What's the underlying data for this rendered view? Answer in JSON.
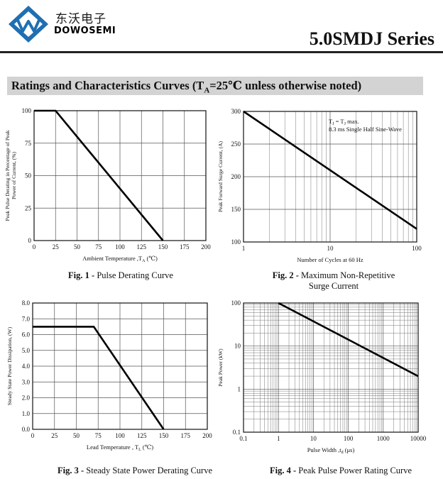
{
  "header": {
    "brand_cn": "东沃电子",
    "brand_en": "DOWOSEMI",
    "series_title": "5.0SMDJ Series",
    "accent_color": "#1f6fb2"
  },
  "section": {
    "title_prefix": "Ratings and Characteristics Curves (T",
    "title_sub": "A",
    "title_suffix": "=25℃ unless otherwise noted)",
    "background": "#d3d3d3"
  },
  "chart_data": [
    {
      "id": "fig1",
      "type": "line",
      "caption_fig": "Fig. 1 -",
      "caption_text": " Pulse Derating Curve",
      "xlabel_main": "Ambient Temperature ,T",
      "xlabel_sub": "A",
      "xlabel_tail": " (℃)",
      "ylabel_lines": [
        "Peak Pulse Derating in Percentage of  Peak",
        "Power of Current, (%)"
      ],
      "xscale": "linear",
      "yscale": "linear",
      "xlim": [
        0,
        200
      ],
      "ylim": [
        0,
        100
      ],
      "x_ticks": [
        0,
        25,
        50,
        75,
        100,
        125,
        150,
        175,
        200
      ],
      "x_tick_labels": [
        "0",
        "25",
        "50",
        "75",
        "100",
        "125",
        "150",
        "175",
        "200"
      ],
      "y_ticks": [
        0,
        25,
        50,
        75,
        100
      ],
      "y_tick_labels": [
        "0",
        "25",
        "50",
        "75",
        "100"
      ],
      "grid": "major",
      "series": [
        {
          "x": [
            0,
            25,
            150
          ],
          "y": [
            100,
            100,
            0
          ]
        }
      ]
    },
    {
      "id": "fig2",
      "type": "line",
      "caption_fig": "Fig. 2 -",
      "caption_text": " Maximum Non-Repetitive",
      "caption_line2": "Surge Current",
      "xlabel_main": "Number of Cycles at 60 Hz",
      "ylabel_lines": [
        "Peak Forward Surge Current, (A)"
      ],
      "xscale": "log",
      "yscale": "linear",
      "xlim": [
        1,
        100
      ],
      "ylim": [
        100,
        300
      ],
      "x_ticks": [
        1,
        10,
        100
      ],
      "x_tick_labels": [
        "1",
        "10",
        "100"
      ],
      "y_ticks": [
        100,
        150,
        200,
        250,
        300
      ],
      "y_tick_labels": [
        "100",
        "150",
        "200",
        "250",
        "300"
      ],
      "grid": "log-minor-x",
      "annotation": {
        "line1_prefix": "T",
        "line1_sub1": "J",
        "line1_mid": " = T",
        "line1_sub2": "J",
        "line1_suffix": " max.",
        "line2": "8.3 ms Single Half Sine-Wave"
      },
      "series": [
        {
          "x": [
            1,
            100
          ],
          "y": [
            300,
            120
          ]
        }
      ]
    },
    {
      "id": "fig3",
      "type": "line",
      "caption_fig": "Fig. 3 -",
      "caption_text": " Steady State Power Derating Curve",
      "xlabel_main": "Lead Temperature , T",
      "xlabel_sub": "L",
      "xlabel_tail": " (℃)",
      "ylabel_lines": [
        "Steady State Power Dissipation, (W)"
      ],
      "xscale": "linear",
      "yscale": "linear",
      "xlim": [
        0,
        200
      ],
      "ylim": [
        0,
        8
      ],
      "x_ticks": [
        0,
        25,
        50,
        75,
        100,
        125,
        150,
        175,
        200
      ],
      "x_tick_labels": [
        "0",
        "25",
        "50",
        "75",
        "100",
        "125",
        "150",
        "175",
        "200"
      ],
      "y_ticks": [
        0,
        1,
        2,
        3,
        4,
        5,
        6,
        7,
        8
      ],
      "y_tick_labels": [
        "0.0",
        "1.0",
        "2.0",
        "3.0",
        "4.0",
        "5.0",
        "6.0",
        "7.0",
        "8.0"
      ],
      "grid": "major",
      "series": [
        {
          "x": [
            0,
            70,
            150
          ],
          "y": [
            6.5,
            6.5,
            0
          ]
        }
      ]
    },
    {
      "id": "fig4",
      "type": "line",
      "caption_fig": "Fig. 4 -",
      "caption_text": " Peak Pulse Power Rating Curve",
      "xlabel_main": "Pulse Width ,t",
      "xlabel_sub": "d",
      "xlabel_tail": " (μs)",
      "ylabel_lines": [
        "Peak Power (kW)"
      ],
      "xscale": "log",
      "yscale": "log",
      "xlim": [
        0.1,
        10000
      ],
      "ylim": [
        0.1,
        100
      ],
      "x_ticks": [
        0.1,
        1,
        10,
        100,
        1000,
        10000
      ],
      "x_tick_labels": [
        "0.1",
        "1",
        "10",
        "100",
        "1000",
        "10000"
      ],
      "y_ticks": [
        0.1,
        1,
        10,
        100
      ],
      "y_tick_labels": [
        "0.1",
        "1",
        "10",
        "100"
      ],
      "grid": "log-minor-xy",
      "series": [
        {
          "x": [
            1,
            10000
          ],
          "y": [
            100,
            2
          ]
        }
      ]
    }
  ]
}
